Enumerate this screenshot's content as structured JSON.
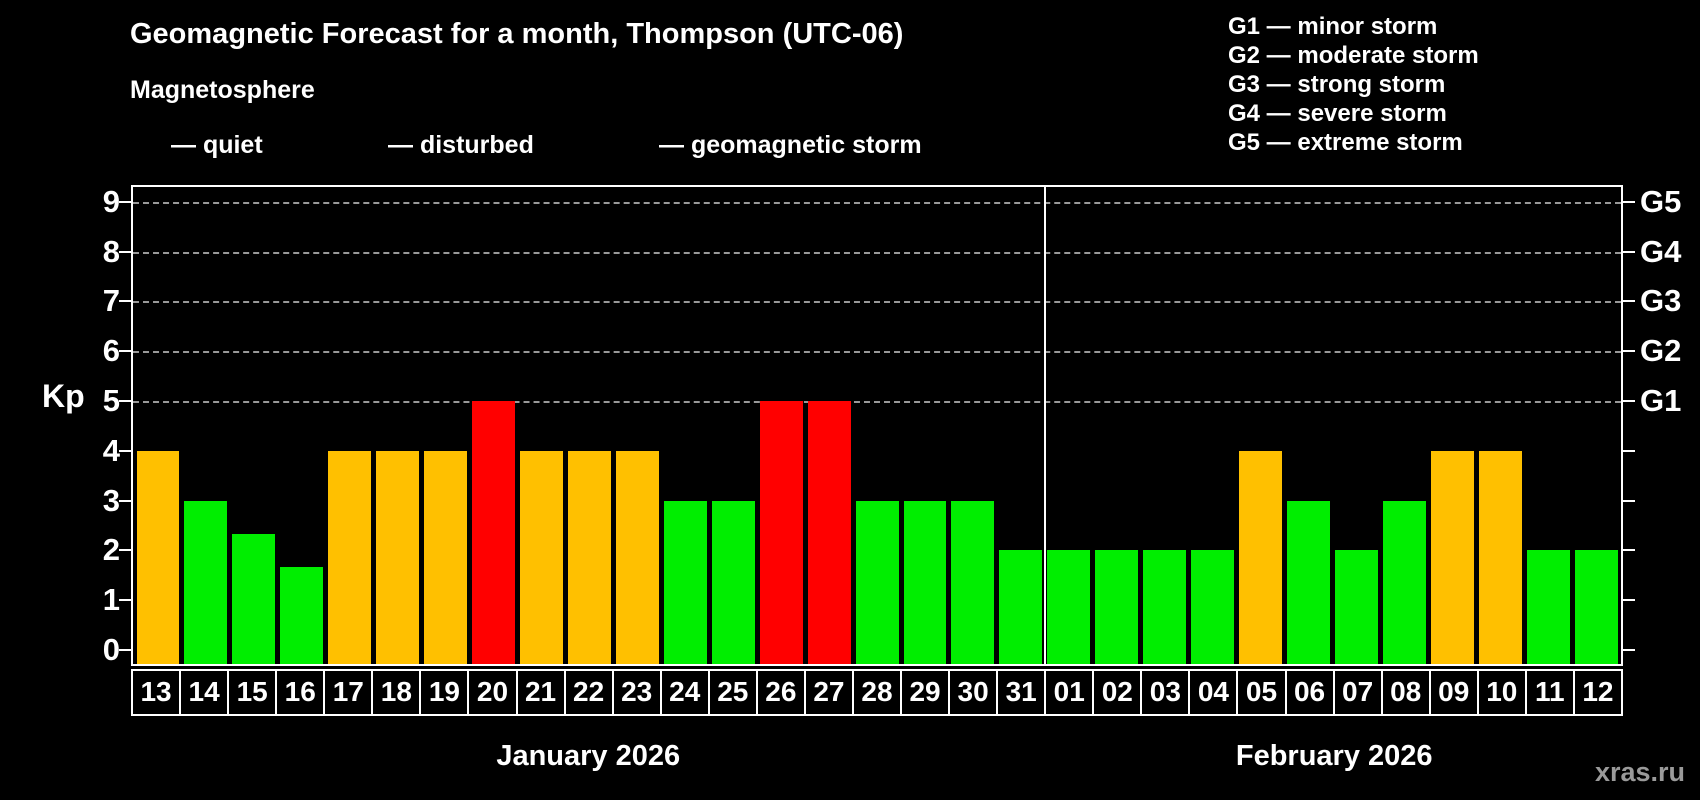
{
  "header": {
    "title": "Geomagnetic Forecast for a month, Thompson (UTC-06)",
    "subtitle": "Magnetosphere"
  },
  "legend": {
    "items": [
      {
        "key": "quiet",
        "label": "— quiet"
      },
      {
        "key": "disturbed",
        "label": "— disturbed"
      },
      {
        "key": "storm",
        "label": "— geomagnetic storm"
      }
    ]
  },
  "g_legend": {
    "items": [
      "G1 — minor storm",
      "G2 — moderate storm",
      "G3 — strong storm",
      "G4 — severe storm",
      "G5 — extreme storm"
    ]
  },
  "colors": {
    "quiet": "#00EE00",
    "disturbed": "#FFC000",
    "storm": "#FF0000",
    "grid": "#999999",
    "axis": "#FFFFFF",
    "background": "#000000",
    "watermark": "#9A9A9A"
  },
  "axes": {
    "y_label": "Kp",
    "y_ticks": [
      0,
      1,
      2,
      3,
      4,
      5,
      6,
      7,
      8,
      9
    ],
    "right_labels": [
      {
        "kp": 5,
        "label": "G1"
      },
      {
        "kp": 6,
        "label": "G2"
      },
      {
        "kp": 7,
        "label": "G3"
      },
      {
        "kp": 8,
        "label": "G4"
      },
      {
        "kp": 9,
        "label": "G5"
      }
    ]
  },
  "months": [
    {
      "caption": "January 2026",
      "days": 19
    },
    {
      "caption": "February 2026",
      "days": 12
    }
  ],
  "watermark": "xras.ru",
  "chart_data": {
    "type": "bar",
    "title": "Geomagnetic Forecast for a month, Thompson (UTC-06)",
    "xlabel": "",
    "ylabel": "Kp",
    "ylim": [
      0,
      9
    ],
    "grid": true,
    "gridlines_at": [
      5,
      6,
      7,
      8,
      9
    ],
    "legend_position": "top-left",
    "categories": [
      "13",
      "14",
      "15",
      "16",
      "17",
      "18",
      "19",
      "20",
      "21",
      "22",
      "23",
      "24",
      "25",
      "26",
      "27",
      "28",
      "29",
      "30",
      "31",
      "01",
      "02",
      "03",
      "04",
      "05",
      "06",
      "07",
      "08",
      "09",
      "10",
      "11",
      "12"
    ],
    "points": [
      {
        "day": "13",
        "month": "January 2026",
        "kp": 4,
        "status": "disturbed"
      },
      {
        "day": "14",
        "month": "January 2026",
        "kp": 3,
        "status": "quiet"
      },
      {
        "day": "15",
        "month": "January 2026",
        "kp": 2.33,
        "status": "quiet"
      },
      {
        "day": "16",
        "month": "January 2026",
        "kp": 1.67,
        "status": "quiet"
      },
      {
        "day": "17",
        "month": "January 2026",
        "kp": 4,
        "status": "disturbed"
      },
      {
        "day": "18",
        "month": "January 2026",
        "kp": 4,
        "status": "disturbed"
      },
      {
        "day": "19",
        "month": "January 2026",
        "kp": 4,
        "status": "disturbed"
      },
      {
        "day": "20",
        "month": "January 2026",
        "kp": 5,
        "status": "storm"
      },
      {
        "day": "21",
        "month": "January 2026",
        "kp": 4,
        "status": "disturbed"
      },
      {
        "day": "22",
        "month": "January 2026",
        "kp": 4,
        "status": "disturbed"
      },
      {
        "day": "23",
        "month": "January 2026",
        "kp": 4,
        "status": "disturbed"
      },
      {
        "day": "24",
        "month": "January 2026",
        "kp": 3,
        "status": "quiet"
      },
      {
        "day": "25",
        "month": "January 2026",
        "kp": 3,
        "status": "quiet"
      },
      {
        "day": "26",
        "month": "January 2026",
        "kp": 5,
        "status": "storm"
      },
      {
        "day": "27",
        "month": "January 2026",
        "kp": 5,
        "status": "storm"
      },
      {
        "day": "28",
        "month": "January 2026",
        "kp": 3,
        "status": "quiet"
      },
      {
        "day": "29",
        "month": "January 2026",
        "kp": 3,
        "status": "quiet"
      },
      {
        "day": "30",
        "month": "January 2026",
        "kp": 3,
        "status": "quiet"
      },
      {
        "day": "31",
        "month": "January 2026",
        "kp": 2,
        "status": "quiet"
      },
      {
        "day": "01",
        "month": "February 2026",
        "kp": 2,
        "status": "quiet"
      },
      {
        "day": "02",
        "month": "February 2026",
        "kp": 2,
        "status": "quiet"
      },
      {
        "day": "03",
        "month": "February 2026",
        "kp": 2,
        "status": "quiet"
      },
      {
        "day": "04",
        "month": "February 2026",
        "kp": 2,
        "status": "quiet"
      },
      {
        "day": "05",
        "month": "February 2026",
        "kp": 4,
        "status": "disturbed"
      },
      {
        "day": "06",
        "month": "February 2026",
        "kp": 3,
        "status": "quiet"
      },
      {
        "day": "07",
        "month": "February 2026",
        "kp": 2,
        "status": "quiet"
      },
      {
        "day": "08",
        "month": "February 2026",
        "kp": 3,
        "status": "quiet"
      },
      {
        "day": "09",
        "month": "February 2026",
        "kp": 4,
        "status": "disturbed"
      },
      {
        "day": "10",
        "month": "February 2026",
        "kp": 4,
        "status": "disturbed"
      },
      {
        "day": "11",
        "month": "February 2026",
        "kp": 2,
        "status": "quiet"
      },
      {
        "day": "12",
        "month": "February 2026",
        "kp": 2,
        "status": "quiet"
      }
    ]
  }
}
